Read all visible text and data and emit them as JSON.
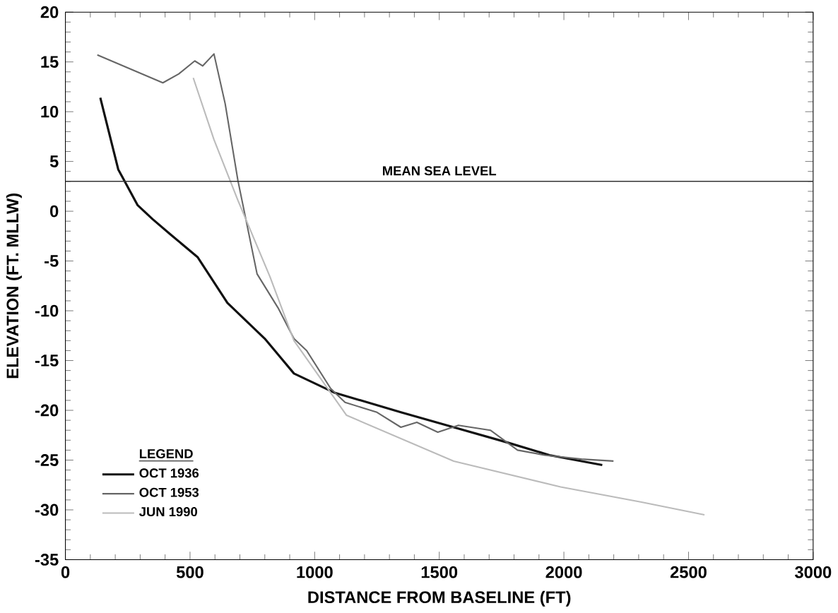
{
  "chart_data": {
    "type": "line",
    "xlabel": "DISTANCE FROM BASELINE (FT)",
    "ylabel": "ELEVATION (FT. MLLW)",
    "legend_title": "LEGEND",
    "legend": "bottom left",
    "xlim": [
      0,
      3000
    ],
    "xticks": [
      0,
      500,
      1000,
      1500,
      2000,
      2500,
      3000
    ],
    "ylim": [
      -35,
      20
    ],
    "yticks": [
      -35,
      -30,
      -25,
      -20,
      -15,
      -10,
      -5,
      0,
      5,
      10,
      15,
      20
    ],
    "ref_lines": [
      {
        "axis": "y",
        "value": 3,
        "label": "MEAN SEA LEVEL",
        "color": "#333333"
      }
    ],
    "series": [
      {
        "name": "OCT 1936",
        "color": "#111111",
        "x": [
          140,
          212,
          290,
          350,
          420,
          530,
          650,
          800,
          917,
          1077,
          1346,
          1558,
          1769,
          1942,
          2154
        ],
        "values": [
          11.4,
          4.2,
          0.6,
          -0.8,
          -2.3,
          -4.6,
          -9.2,
          -12.8,
          -16.3,
          -18.2,
          -20.2,
          -21.7,
          -23.2,
          -24.5,
          -25.5
        ]
      },
      {
        "name": "OCT 1953",
        "color": "#666666",
        "x": [
          128,
          391,
          455,
          519,
          551,
          596,
          641,
          692,
          769,
          853,
          917,
          968,
          1064,
          1122,
          1250,
          1346,
          1410,
          1494,
          1577,
          1705,
          1814,
          1923,
          2071,
          2199
        ],
        "values": [
          15.7,
          12.9,
          13.8,
          15.1,
          14.6,
          15.8,
          10.8,
          3.1,
          -6.3,
          -9.7,
          -12.8,
          -14,
          -17.8,
          -19.2,
          -20.2,
          -21.7,
          -21.2,
          -22.2,
          -21.5,
          -22,
          -24,
          -24.5,
          -24.9,
          -25.1
        ]
      },
      {
        "name": "JUN 1990",
        "color": "#bbbbbb",
        "x": [
          513,
          596,
          692,
          821,
          917,
          1128,
          1558,
          1987,
          2308,
          2564
        ],
        "values": [
          13.4,
          7.2,
          1.1,
          -6.6,
          -13,
          -20.5,
          -25.1,
          -27.7,
          -29.2,
          -30.5
        ]
      }
    ]
  }
}
